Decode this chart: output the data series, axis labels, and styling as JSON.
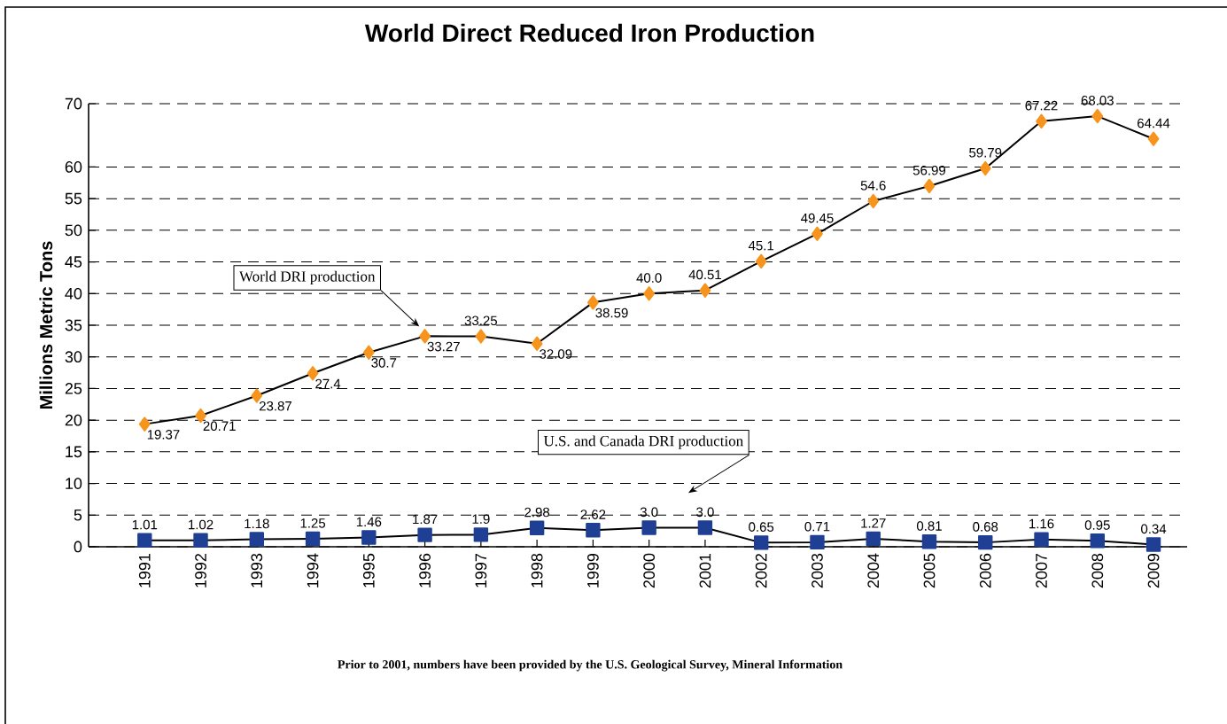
{
  "chart_data": {
    "type": "line",
    "title": "World Direct Reduced Iron Production",
    "ylabel": "Millions Metric Tons",
    "categories": [
      "1991",
      "1992",
      "1993",
      "1994",
      "1995",
      "1996",
      "1997",
      "1998",
      "1999",
      "2000",
      "2001",
      "2002",
      "2003",
      "2004",
      "2005",
      "2006",
      "2007",
      "2008",
      "2009"
    ],
    "series": [
      {
        "name": "World DRI production",
        "color": "#f7941d",
        "marker": "diamond",
        "values": [
          19.37,
          20.71,
          23.87,
          27.4,
          30.7,
          33.27,
          33.25,
          32.09,
          38.59,
          40.0,
          40.51,
          45.1,
          49.45,
          54.6,
          56.99,
          59.79,
          67.22,
          68.03,
          64.44
        ],
        "value_labels": [
          "19.37",
          "20.71",
          "23.87",
          "27.4",
          "30.7",
          "33.27",
          "33.25",
          "32.09",
          "38.59",
          "40.0",
          "40.51",
          "45.1",
          "49.45",
          "54.6",
          "56.99",
          "59.79",
          "67.22",
          "68.03",
          "64.44"
        ]
      },
      {
        "name": "U.S. and Canada DRI production",
        "color": "#1f3f94",
        "marker": "square",
        "values": [
          1.01,
          1.02,
          1.18,
          1.25,
          1.46,
          1.87,
          1.9,
          2.98,
          2.62,
          3.0,
          3.0,
          0.65,
          0.71,
          1.27,
          0.81,
          0.68,
          1.16,
          0.95,
          0.34
        ],
        "value_labels": [
          "1.01",
          "1.02",
          "1.18",
          "1.25",
          "1.46",
          "1.87",
          "1.9",
          "2.98",
          "2.62",
          "3.0",
          "3.0",
          "0.65",
          "0.71",
          "1.27",
          "0.81",
          "0.68",
          "1.16",
          "0.95",
          "0.34"
        ]
      }
    ],
    "ylim": [
      0,
      70
    ],
    "yticks": [
      0,
      5,
      10,
      15,
      20,
      25,
      30,
      35,
      40,
      45,
      50,
      55,
      60,
      70
    ],
    "grid": "y",
    "legend": false,
    "line_style": "solid",
    "annotations": [
      "Prior to 2001, numbers have been provided by the U.S. Geological Survey, Mineral Information"
    ]
  }
}
